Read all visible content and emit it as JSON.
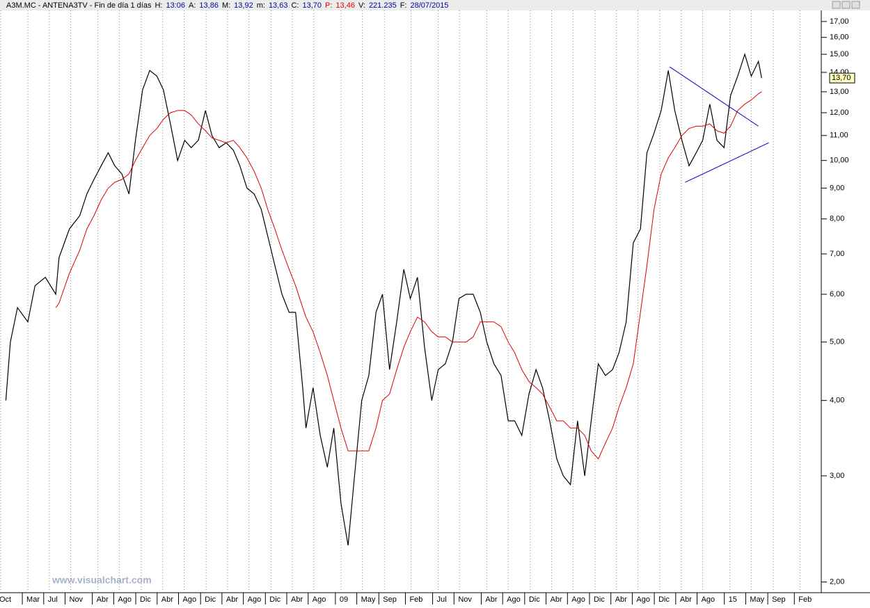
{
  "chart_data": {
    "type": "line",
    "header": {
      "title": "A3M.MC - ANTENA3TV - Fin de día 1 días",
      "fields": [
        {
          "label": "H:",
          "value": "13:06"
        },
        {
          "label": "A:",
          "value": "13,86"
        },
        {
          "label": "M:",
          "value": "13,92"
        },
        {
          "label": "m:",
          "value": "13,63"
        },
        {
          "label": "C:",
          "value": "13,70"
        },
        {
          "label": "P:",
          "value": "13,46",
          "color": "#e00000"
        },
        {
          "label": "V:",
          "value": "221.235"
        },
        {
          "label": "F:",
          "value": "28/07/2015"
        }
      ]
    },
    "last_label": "13,70",
    "watermark": "www.visualchart.com",
    "log_scale": true,
    "grid": true,
    "xlim": [
      2003.74,
      2016.41
    ],
    "ylim": [
      1.92,
      17.64
    ],
    "yticks": [
      {
        "value": 17,
        "label": "17,00"
      },
      {
        "value": 16,
        "label": "16,00"
      },
      {
        "value": 15,
        "label": "15,00"
      },
      {
        "value": 14,
        "label": "14,00"
      },
      {
        "value": 13,
        "label": "13,00"
      },
      {
        "value": 12,
        "label": "12,00"
      },
      {
        "value": 11,
        "label": "11,00"
      },
      {
        "value": 10,
        "label": "10,00"
      },
      {
        "value": 9,
        "label": "9,00"
      },
      {
        "value": 8,
        "label": "8,00"
      },
      {
        "value": 7,
        "label": "7,00"
      },
      {
        "value": 6,
        "label": "6,00"
      },
      {
        "value": 5,
        "label": "5,00"
      },
      {
        "value": 4,
        "label": "4,00"
      },
      {
        "value": 3,
        "label": "3,00"
      },
      {
        "value": 2,
        "label": "2,00"
      }
    ],
    "xticks": [
      {
        "value": 2003.75,
        "label": "Oct"
      },
      {
        "value": 2004.17,
        "label": "Mar"
      },
      {
        "value": 2004.5,
        "label": "Jul"
      },
      {
        "value": 2004.83,
        "label": "Nov"
      },
      {
        "value": 2005.25,
        "label": "Abr"
      },
      {
        "value": 2005.58,
        "label": "Ago"
      },
      {
        "value": 2005.92,
        "label": "Dic"
      },
      {
        "value": 2006.25,
        "label": "Abr"
      },
      {
        "value": 2006.58,
        "label": "Ago"
      },
      {
        "value": 2006.92,
        "label": "Dic"
      },
      {
        "value": 2007.25,
        "label": "Abr"
      },
      {
        "value": 2007.58,
        "label": "Ago"
      },
      {
        "value": 2007.92,
        "label": "Dic"
      },
      {
        "value": 2008.25,
        "label": "Abr"
      },
      {
        "value": 2008.58,
        "label": "Ago"
      },
      {
        "value": 2009,
        "label": "09"
      },
      {
        "value": 2009.33,
        "label": "May"
      },
      {
        "value": 2009.67,
        "label": "Sep"
      },
      {
        "value": 2010.08,
        "label": "Feb"
      },
      {
        "value": 2010.5,
        "label": "Jul"
      },
      {
        "value": 2010.83,
        "label": "Nov"
      },
      {
        "value": 2011.25,
        "label": "Abr"
      },
      {
        "value": 2011.58,
        "label": "Ago"
      },
      {
        "value": 2011.92,
        "label": "Dic"
      },
      {
        "value": 2012.25,
        "label": "Abr"
      },
      {
        "value": 2012.58,
        "label": "Ago"
      },
      {
        "value": 2012.92,
        "label": "Dic"
      },
      {
        "value": 2013.25,
        "label": "Abr"
      },
      {
        "value": 2013.58,
        "label": "Ago"
      },
      {
        "value": 2013.92,
        "label": "Dic"
      },
      {
        "value": 2014.25,
        "label": "Abr"
      },
      {
        "value": 2014.58,
        "label": "Ago"
      },
      {
        "value": 2015,
        "label": "15"
      },
      {
        "value": 2015.33,
        "label": "May"
      },
      {
        "value": 2015.67,
        "label": "Sep"
      },
      {
        "value": 2016.08,
        "label": "Feb"
      }
    ],
    "x": [
      2003.83,
      2003.9,
      2004.01,
      2004.17,
      2004.28,
      2004.44,
      2004.6,
      2004.65,
      2004.81,
      2004.97,
      2005.08,
      2005.19,
      2005.3,
      2005.41,
      2005.51,
      2005.62,
      2005.73,
      2005.83,
      2005.94,
      2006.05,
      2006.16,
      2006.26,
      2006.37,
      2006.48,
      2006.59,
      2006.69,
      2006.8,
      2006.91,
      2007.01,
      2007.12,
      2007.23,
      2007.34,
      2007.44,
      2007.55,
      2007.66,
      2007.77,
      2007.87,
      2007.98,
      2008.09,
      2008.2,
      2008.3,
      2008.41,
      2008.46,
      2008.57,
      2008.68,
      2008.79,
      2008.89,
      2009.0,
      2009.11,
      2009.21,
      2009.32,
      2009.43,
      2009.54,
      2009.64,
      2009.75,
      2009.86,
      2009.97,
      2010.07,
      2010.18,
      2010.29,
      2010.4,
      2010.5,
      2010.61,
      2010.72,
      2010.82,
      2010.93,
      2011.04,
      2011.15,
      2011.25,
      2011.36,
      2011.47,
      2011.58,
      2011.68,
      2011.79,
      2011.9,
      2012.01,
      2012.11,
      2012.22,
      2012.33,
      2012.43,
      2012.54,
      2012.65,
      2012.76,
      2012.86,
      2012.97,
      2013.08,
      2013.19,
      2013.29,
      2013.4,
      2013.51,
      2013.62,
      2013.72,
      2013.83,
      2013.94,
      2014.05,
      2014.15,
      2014.26,
      2014.37,
      2014.48,
      2014.58,
      2014.69,
      2014.8,
      2014.91,
      2015.01,
      2015.12,
      2015.23,
      2015.33,
      2015.44,
      2015.49
    ],
    "series": [
      {
        "color": "#000000",
        "values": [
          4.0,
          5.0,
          5.7,
          5.4,
          6.2,
          6.4,
          6.0,
          6.9,
          7.7,
          8.1,
          8.8,
          9.3,
          9.8,
          10.3,
          9.8,
          9.5,
          8.8,
          10.8,
          13.1,
          14.1,
          13.8,
          13.1,
          11.5,
          10.0,
          10.8,
          10.5,
          10.8,
          12.1,
          11.0,
          10.5,
          10.7,
          10.4,
          9.8,
          9.0,
          8.8,
          8.3,
          7.5,
          6.7,
          6.0,
          5.6,
          5.6,
          4.2,
          3.6,
          4.2,
          3.5,
          3.1,
          3.6,
          2.7,
          2.3,
          3.0,
          4.0,
          4.4,
          5.6,
          6.0,
          4.5,
          5.4,
          6.6,
          5.9,
          6.4,
          4.9,
          4.0,
          4.5,
          4.6,
          5.0,
          5.9,
          6.0,
          6.0,
          5.6,
          5.0,
          4.6,
          4.4,
          3.7,
          3.7,
          3.5,
          4.1,
          4.5,
          4.2,
          3.7,
          3.2,
          3.0,
          2.9,
          3.7,
          3.0,
          3.7,
          4.6,
          4.4,
          4.5,
          4.8,
          5.4,
          7.3,
          7.7,
          10.3,
          11.1,
          12.1,
          14.1,
          12.1,
          10.8,
          9.8,
          10.3,
          10.8,
          12.4,
          10.8,
          10.5,
          12.8,
          13.8,
          15.0,
          13.8,
          14.6,
          13.7
        ]
      },
      {
        "color": "#e00000",
        "values": [
          null,
          null,
          null,
          null,
          null,
          null,
          5.7,
          5.8,
          6.5,
          7.1,
          7.7,
          8.1,
          8.6,
          9.0,
          9.2,
          9.3,
          9.5,
          10.0,
          10.5,
          11.0,
          11.3,
          11.7,
          12.0,
          12.1,
          12.1,
          11.9,
          11.5,
          11.2,
          10.9,
          10.8,
          10.7,
          10.8,
          10.5,
          10.1,
          9.6,
          9.0,
          8.3,
          7.7,
          7.1,
          6.6,
          6.2,
          5.7,
          5.5,
          5.2,
          4.8,
          4.4,
          4.0,
          3.6,
          3.3,
          3.3,
          3.3,
          3.3,
          3.6,
          4.0,
          4.1,
          4.5,
          4.9,
          5.2,
          5.5,
          5.4,
          5.2,
          5.1,
          5.1,
          5.0,
          5.0,
          5.0,
          5.1,
          5.4,
          5.4,
          5.4,
          5.3,
          5.0,
          4.8,
          4.5,
          4.3,
          4.2,
          4.1,
          3.9,
          3.7,
          3.7,
          3.6,
          3.6,
          3.5,
          3.3,
          3.2,
          3.4,
          3.6,
          3.9,
          4.2,
          4.6,
          5.6,
          6.7,
          8.3,
          9.5,
          10.1,
          10.5,
          11.0,
          11.3,
          11.4,
          11.4,
          11.5,
          11.2,
          11.1,
          11.4,
          12.1,
          12.4,
          12.6,
          12.9,
          13.0
        ]
      }
    ],
    "trendlines": [
      {
        "color": "#0000c0",
        "x": [
          2014.07,
          2015.44
        ],
        "y": [
          14.3,
          11.4
        ]
      },
      {
        "color": "#0000c0",
        "x": [
          2014.31,
          2015.6
        ],
        "y": [
          9.2,
          10.7
        ]
      }
    ]
  }
}
